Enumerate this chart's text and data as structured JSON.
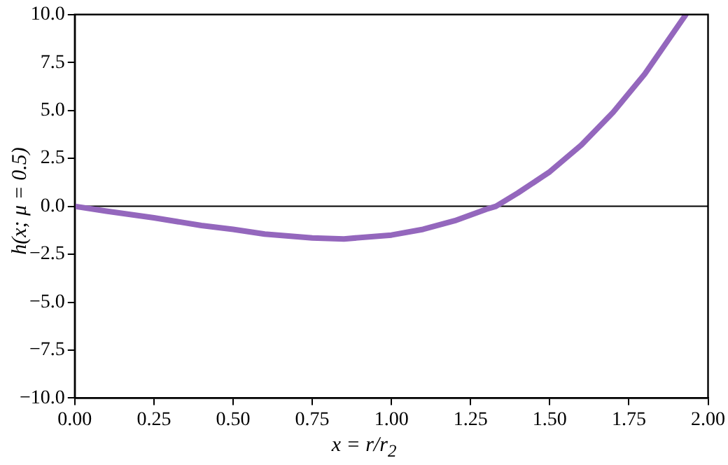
{
  "chart_data": {
    "type": "line",
    "xlabel": "x = r/r$_{2}$",
    "ylabel": "h(x; μ = 0.5)",
    "x": [
      0,
      0.1,
      0.25,
      0.4,
      0.5,
      0.6,
      0.75,
      0.85,
      1.0,
      1.1,
      1.2,
      1.3,
      1.33,
      1.4,
      1.5,
      1.6,
      1.7,
      1.8,
      1.93
    ],
    "series": [
      {
        "color": "#9467bd",
        "values": [
          0,
          -0.25,
          -0.6,
          -1.0,
          -1.2,
          -1.45,
          -1.65,
          -1.7,
          -1.5,
          -1.2,
          -0.75,
          -0.15,
          0,
          0.7,
          1.8,
          3.2,
          4.9,
          6.9,
          10
        ]
      }
    ],
    "xlim": [
      0,
      2
    ],
    "ylim": [
      -10,
      10
    ],
    "xticks": [
      {
        "value": 0,
        "label": "0.00"
      },
      {
        "value": 0.25,
        "label": "0.25"
      },
      {
        "value": 0.5,
        "label": "0.50"
      },
      {
        "value": 0.75,
        "label": "0.75"
      },
      {
        "value": 1,
        "label": "1.00"
      },
      {
        "value": 1.25,
        "label": "1.25"
      },
      {
        "value": 1.5,
        "label": "1.50"
      },
      {
        "value": 1.75,
        "label": "1.75"
      },
      {
        "value": 2,
        "label": "2.00"
      }
    ],
    "yticks": [
      {
        "value": -10,
        "label": "−10.0"
      },
      {
        "value": -7.5,
        "label": "−7.5"
      },
      {
        "value": -5,
        "label": "−5.0"
      },
      {
        "value": -2.5,
        "label": "−2.5"
      },
      {
        "value": 0,
        "label": "0.0"
      },
      {
        "value": 2.5,
        "label": "2.5"
      },
      {
        "value": 5,
        "label": "5.0"
      },
      {
        "value": 7.5,
        "label": "7.5"
      },
      {
        "value": 10,
        "label": "10.0"
      }
    ],
    "ref_lines": [
      {
        "axis": "y",
        "value": 0,
        "color": "#000000"
      }
    ],
    "grid": false,
    "legend": false,
    "marker": "none",
    "line_style": "solid"
  }
}
